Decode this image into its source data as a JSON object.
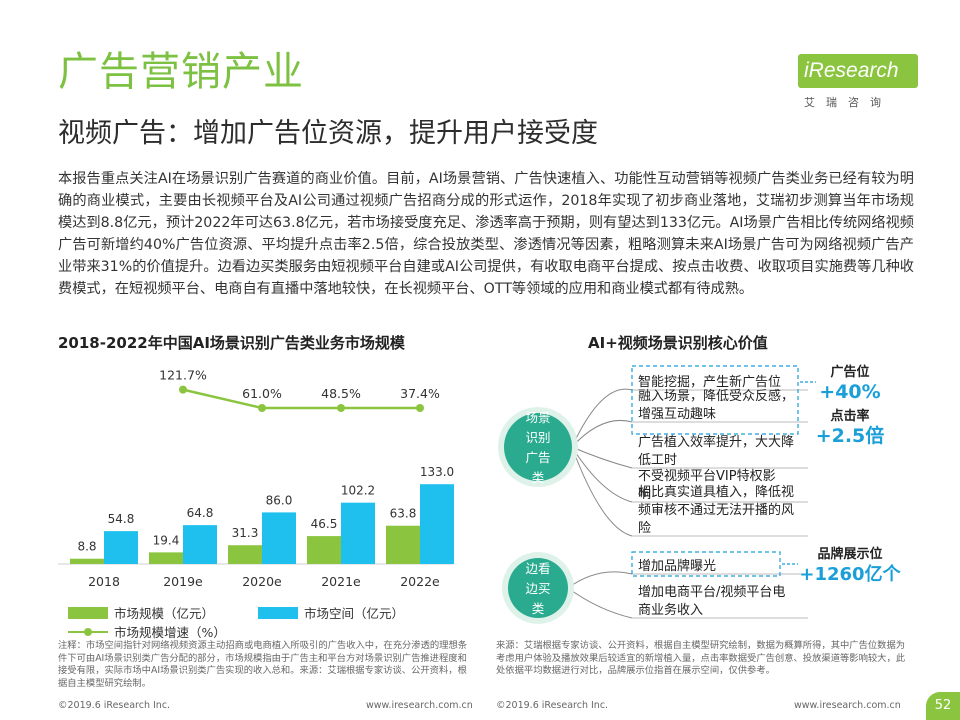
{
  "header": {
    "title": "广告营销产业",
    "subtitle": "视频广告：增加广告位资源，提升用户接受度"
  },
  "logo": {
    "brand": "iResearch",
    "brand_cn": "艾瑞咨询"
  },
  "summary": "本报告重点关注AI在场景识别广告赛道的商业价值。目前，AI场景营销、广告快速植入、功能性互动营销等视频广告类业务已经有较为明确的商业模式，主要由长视频平台及AI公司通过视频广告招商分成的形式运作，2018年实现了初步商业落地，艾瑞初步测算当年市场规模达到8.8亿元，预计2022年可达63.8亿元，若市场接受度充足、渗透率高于预期，则有望达到133亿元。AI场景广告相比传统网络视频广告可新增约40%广告位资源、平均提升点击率2.5倍，综合投放类型、渗透情况等因素，粗略测算未来AI场景广告可为网络视频广告产业带来31%的价值提升。边看边买类服务由短视频平台自建或AI公司提供，有收取电商平台提成、按点击收费、收取项目实施费等几种收费模式，在短视频平台、电商自有直播中落地较快，在长视频平台、OTT等领域的应用和商业模式都有待成熟。",
  "chart_title": "2018-2022年中国AI场景识别广告类业务市场规模",
  "chart_data": {
    "type": "bar",
    "categories": [
      "2018",
      "2019e",
      "2020e",
      "2021e",
      "2022e"
    ],
    "series": [
      {
        "name": "市场规模（亿元）",
        "values": [
          8.8,
          19.4,
          31.3,
          46.5,
          63.8
        ],
        "color": "#8bc53f"
      },
      {
        "name": "市场空间（亿元）",
        "values": [
          54.8,
          64.8,
          86.0,
          102.2,
          133.0
        ],
        "color": "#1fc0ee"
      }
    ],
    "bar_labels": {
      "size": [
        "8.8",
        "19.4",
        "31.3",
        "46.5",
        "63.8"
      ],
      "space": [
        "54.8",
        "64.8",
        "86.0",
        "102.2",
        "133.0"
      ]
    },
    "growth": {
      "name": "市场规模增速（%）",
      "categories": [
        "2019e",
        "2020e",
        "2021e",
        "2022e"
      ],
      "values": [
        121.7,
        61.0,
        48.5,
        37.4
      ],
      "labels": [
        "121.7%",
        "61.0%",
        "48.5%",
        "37.4%"
      ],
      "color": "#8bc53f"
    },
    "ylim": [
      0,
      140
    ],
    "grid": false,
    "legend_position": "bottom"
  },
  "diagram": {
    "title": "AI+视频场景识别核心价值",
    "groups": [
      {
        "label_lines": [
          "场景",
          "识别",
          "广告",
          "类"
        ],
        "items": [
          "智能挖掘，产生新广告位",
          "融入场景，降低受众反感，增强互动趣味",
          "广告植入效率提升，大大降低工时",
          "不受视频平台VIP特权影响",
          "相比真实道具植入，降低视频审核不通过无法开播的风险"
        ],
        "metrics": [
          {
            "label": "广告位",
            "value": "+40%"
          },
          {
            "label": "点击率",
            "value": "+2.5倍"
          }
        ]
      },
      {
        "label_lines": [
          "边看",
          "边买",
          "类"
        ],
        "items": [
          "增加品牌曝光",
          "增加电商平台/视频平台电商业务收入"
        ],
        "metrics": [
          {
            "label": "品牌展示位",
            "value": "+1260亿个"
          }
        ]
      }
    ],
    "colors": {
      "circle": "#2aab8f",
      "dashed": "#1a9fd9",
      "value": "#1a9fd9"
    }
  },
  "notes": {
    "left": "注释：市场空间指针对网络视频资源主动招商或电商植入所吸引的广告收入中，在充分渗透的理想条件下可由AI场景识别类广告分配的部分，市场规模指由于广告主和平台方对场景识别广告推进程度和接受有限，实际市场中AI场景识别类广告实现的收入总和。来源：艾瑞根据专家访谈、公开资料，根据自主模型研究绘制。",
    "right": "来源：艾瑞根据专家访谈、公开资料，根据自主模型研究绘制，数据为概算所得，其中广告位数据为考虑用户体验及播放效果后较适宜的新增植入量，点击率数据受广告创意、投放渠道等影响较大，此处依据平均数据进行对比，品牌展示位指首在展示空间，仅供参考。"
  },
  "footer": {
    "copyright_left": "©2019.6 iResearch Inc.",
    "url_left": "www.iresearch.com.cn",
    "copyright_right": "©2019.6 iResearch Inc.",
    "url_right": "www.iresearch.com.cn",
    "page_number": "52"
  }
}
